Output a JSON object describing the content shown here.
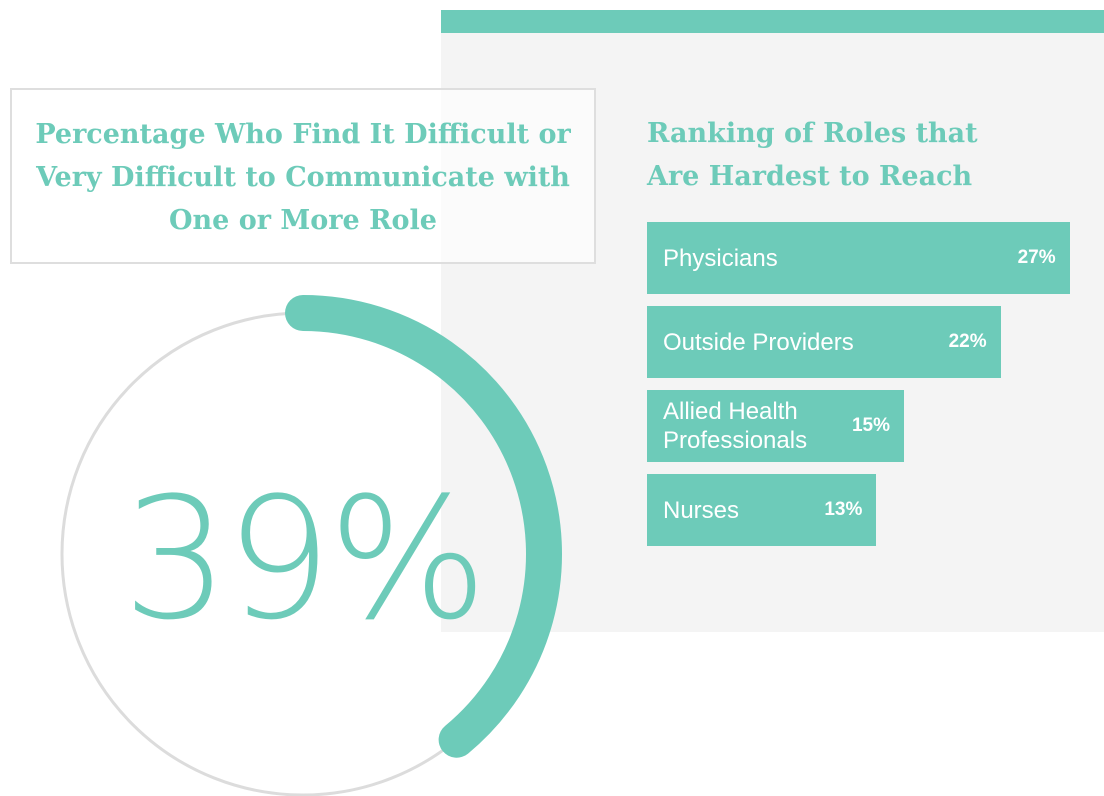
{
  "chart_data": [
    {
      "type": "gauge",
      "title": "Percentage Who Find It Difficult or Very Difficult to Communicate with One or More Role",
      "value": 39,
      "value_label": "39%",
      "color": "#6dcbb9"
    },
    {
      "type": "bar",
      "title": "Ranking of Roles that Are Hardest to Reach",
      "categories": [
        "Physicians",
        "Outside Providers",
        "Allied Health Professionals",
        "Nurses"
      ],
      "values": [
        27,
        22,
        15,
        13
      ],
      "value_labels": [
        "27%",
        "22%",
        "15%",
        "13%"
      ],
      "color": "#6dcbb9"
    }
  ]
}
